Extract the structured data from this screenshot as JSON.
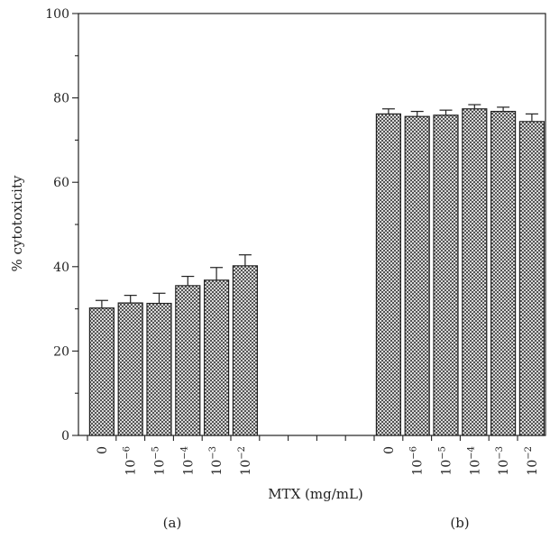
{
  "chart_data": {
    "type": "bar",
    "ylabel": "% cytotoxicity",
    "xlabel": "MTX (mg/mL)",
    "ylim": [
      0,
      100
    ],
    "yticks": [
      0,
      20,
      40,
      60,
      80,
      100
    ],
    "grid": false,
    "bar_pattern": "crosshatch",
    "bar_color": "#3a3a3a",
    "groups": [
      {
        "label": "(a)",
        "bars": [
          {
            "base": "0",
            "exp": "",
            "value": 30.2,
            "error": 1.8
          },
          {
            "base": "10",
            "exp": "−6",
            "value": 31.4,
            "error": 1.8
          },
          {
            "base": "10",
            "exp": "−5",
            "value": 31.3,
            "error": 2.4
          },
          {
            "base": "10",
            "exp": "−4",
            "value": 35.5,
            "error": 2.2
          },
          {
            "base": "10",
            "exp": "−3",
            "value": 36.8,
            "error": 3.0
          },
          {
            "base": "10",
            "exp": "−2",
            "value": 40.2,
            "error": 2.6
          }
        ]
      },
      {
        "label": "(b)",
        "bars": [
          {
            "base": "0",
            "exp": "",
            "value": 76.2,
            "error": 1.2
          },
          {
            "base": "10",
            "exp": "−6",
            "value": 75.6,
            "error": 1.2
          },
          {
            "base": "10",
            "exp": "−5",
            "value": 75.9,
            "error": 1.2
          },
          {
            "base": "10",
            "exp": "−4",
            "value": 77.4,
            "error": 1.0
          },
          {
            "base": "10",
            "exp": "−3",
            "value": 76.8,
            "error": 1.0
          },
          {
            "base": "10",
            "exp": "−2",
            "value": 74.4,
            "error": 1.8
          }
        ]
      }
    ]
  }
}
